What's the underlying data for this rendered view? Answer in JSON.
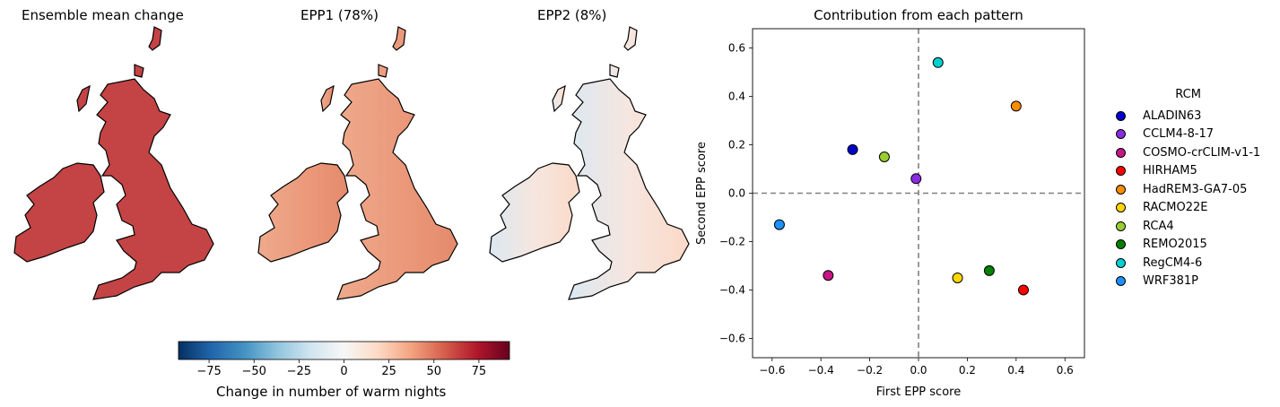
{
  "map_panels": [
    {
      "title": "Ensemble mean change",
      "fill": "#c44345",
      "west": "#c44345",
      "east": "#c44345"
    },
    {
      "title": "EPP1 (78%)",
      "fill": "#ec9a7c",
      "west": "#eeaa8c",
      "east": "#e58a6c"
    },
    {
      "title": "EPP2 (8%)",
      "fill": "#f6e6df",
      "west": "#dbe8f1",
      "east": "#fbd9c7"
    }
  ],
  "colorbar": {
    "label": "Change in number of warm nights",
    "ticks": [
      "−75",
      "−50",
      "−25",
      "0",
      "25",
      "50",
      "75"
    ],
    "tick_values": [
      -75,
      -50,
      -25,
      0,
      25,
      50,
      75
    ],
    "range": [
      -92,
      92
    ],
    "colormap": "RdBu_r",
    "colors": [
      "#053061",
      "#2166ac",
      "#4393c3",
      "#92c5de",
      "#d1e5f0",
      "#f7f7f7",
      "#fddbc7",
      "#f4a582",
      "#d6604d",
      "#b2182b",
      "#67001f"
    ]
  },
  "chart_data": {
    "type": "scatter",
    "title": "Contribution from each pattern",
    "xlabel": "First EPP score",
    "ylabel": "Second EPP score",
    "xlim": [
      -0.68,
      0.68
    ],
    "ylim": [
      -0.68,
      0.68
    ],
    "xticks": [
      -0.6,
      -0.4,
      -0.2,
      0.0,
      0.2,
      0.4,
      0.6
    ],
    "yticks": [
      -0.6,
      -0.4,
      -0.2,
      0.0,
      0.2,
      0.4,
      0.6
    ],
    "xtick_labels": [
      "−0.6",
      "−0.4",
      "−0.2",
      "0.0",
      "0.2",
      "0.4",
      "0.6"
    ],
    "ytick_labels": [
      "−0.6",
      "−0.4",
      "−0.2",
      "0.0",
      "0.2",
      "0.4",
      "0.6"
    ],
    "grid": false,
    "reference_lines": {
      "x": 0,
      "y": 0,
      "style": "dashed",
      "color": "#808080"
    },
    "legend_title": "RCM",
    "legend_position": "outside-right",
    "series": [
      {
        "name": "ALADIN63",
        "x": -0.27,
        "y": 0.18,
        "color": "#0000cd"
      },
      {
        "name": "CCLM4-8-17",
        "x": -0.01,
        "y": 0.06,
        "color": "#8a2be2"
      },
      {
        "name": "COSMO-crCLIM-v1-1",
        "x": -0.37,
        "y": -0.34,
        "color": "#c71585"
      },
      {
        "name": "HIRHAM5",
        "x": 0.43,
        "y": -0.4,
        "color": "#ff0000"
      },
      {
        "name": "HadREM3-GA7-05",
        "x": 0.4,
        "y": 0.36,
        "color": "#ff8c00"
      },
      {
        "name": "RACMO22E",
        "x": 0.16,
        "y": -0.35,
        "color": "#ffd700"
      },
      {
        "name": "RCA4",
        "x": -0.14,
        "y": 0.15,
        "color": "#9acd32"
      },
      {
        "name": "REMO2015",
        "x": 0.29,
        "y": -0.32,
        "color": "#008000"
      },
      {
        "name": "RegCM4-6",
        "x": 0.08,
        "y": 0.54,
        "color": "#00ced1"
      },
      {
        "name": "WRF381P",
        "x": -0.57,
        "y": -0.13,
        "color": "#1e90ff"
      }
    ]
  }
}
